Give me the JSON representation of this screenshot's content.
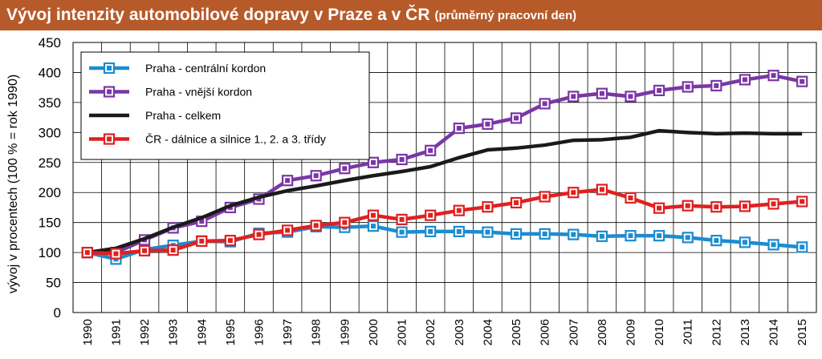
{
  "header": {
    "title": "Vývoj intenzity automobilové dopravy v Praze a v ČR",
    "subtitle": "(průměrný pracovní den)",
    "background": "#b75a2a"
  },
  "chart_data": {
    "type": "line",
    "ylabel": "vývoj v procentech (100 % = rok 1990)",
    "xlabel": "",
    "ylim": [
      0,
      450
    ],
    "yticks": [
      0,
      50,
      100,
      150,
      200,
      250,
      300,
      350,
      400,
      450
    ],
    "grid": true,
    "legend_position": "top-left",
    "categories": [
      "1990",
      "1991",
      "1992",
      "1993",
      "1994",
      "1995",
      "1996",
      "1997",
      "1998",
      "1999",
      "2000",
      "2001",
      "2002",
      "2003",
      "2004",
      "2005",
      "2006",
      "2007",
      "2008",
      "2009",
      "2010",
      "2011",
      "2012",
      "2013",
      "2014",
      "2015"
    ],
    "series": [
      {
        "name": "Praha - centrální kordon",
        "color": "#1c8cd0",
        "marker": true,
        "values": [
          100,
          89,
          105,
          112,
          119,
          118,
          132,
          134,
          143,
          142,
          144,
          134,
          135,
          135,
          134,
          131,
          131,
          130,
          127,
          128,
          128,
          125,
          120,
          117,
          113,
          109
        ]
      },
      {
        "name": "Praha - vnější kordon",
        "color": "#7a36a6",
        "marker": true,
        "values": [
          100,
          100,
          121,
          141,
          152,
          175,
          189,
          220,
          228,
          240,
          250,
          255,
          270,
          307,
          314,
          324,
          348,
          360,
          365,
          360,
          370,
          376,
          378,
          388,
          395,
          385
        ]
      },
      {
        "name": "Praha - celkem",
        "color": "#1a1a1a",
        "marker": false,
        "values": [
          100,
          107,
          123,
          142,
          158,
          178,
          192,
          203,
          211,
          220,
          228,
          235,
          243,
          258,
          271,
          274,
          279,
          287,
          288,
          292,
          303,
          300,
          298,
          299,
          298,
          298
        ]
      },
      {
        "name": "ČR - dálnice a silnice 1., 2. a 3. třídy",
        "color": "#e02020",
        "marker": true,
        "values": [
          100,
          98,
          103,
          104,
          119,
          120,
          130,
          137,
          145,
          150,
          162,
          155,
          162,
          170,
          176,
          183,
          193,
          200,
          205,
          191,
          174,
          178,
          176,
          177,
          181,
          185
        ]
      }
    ]
  }
}
